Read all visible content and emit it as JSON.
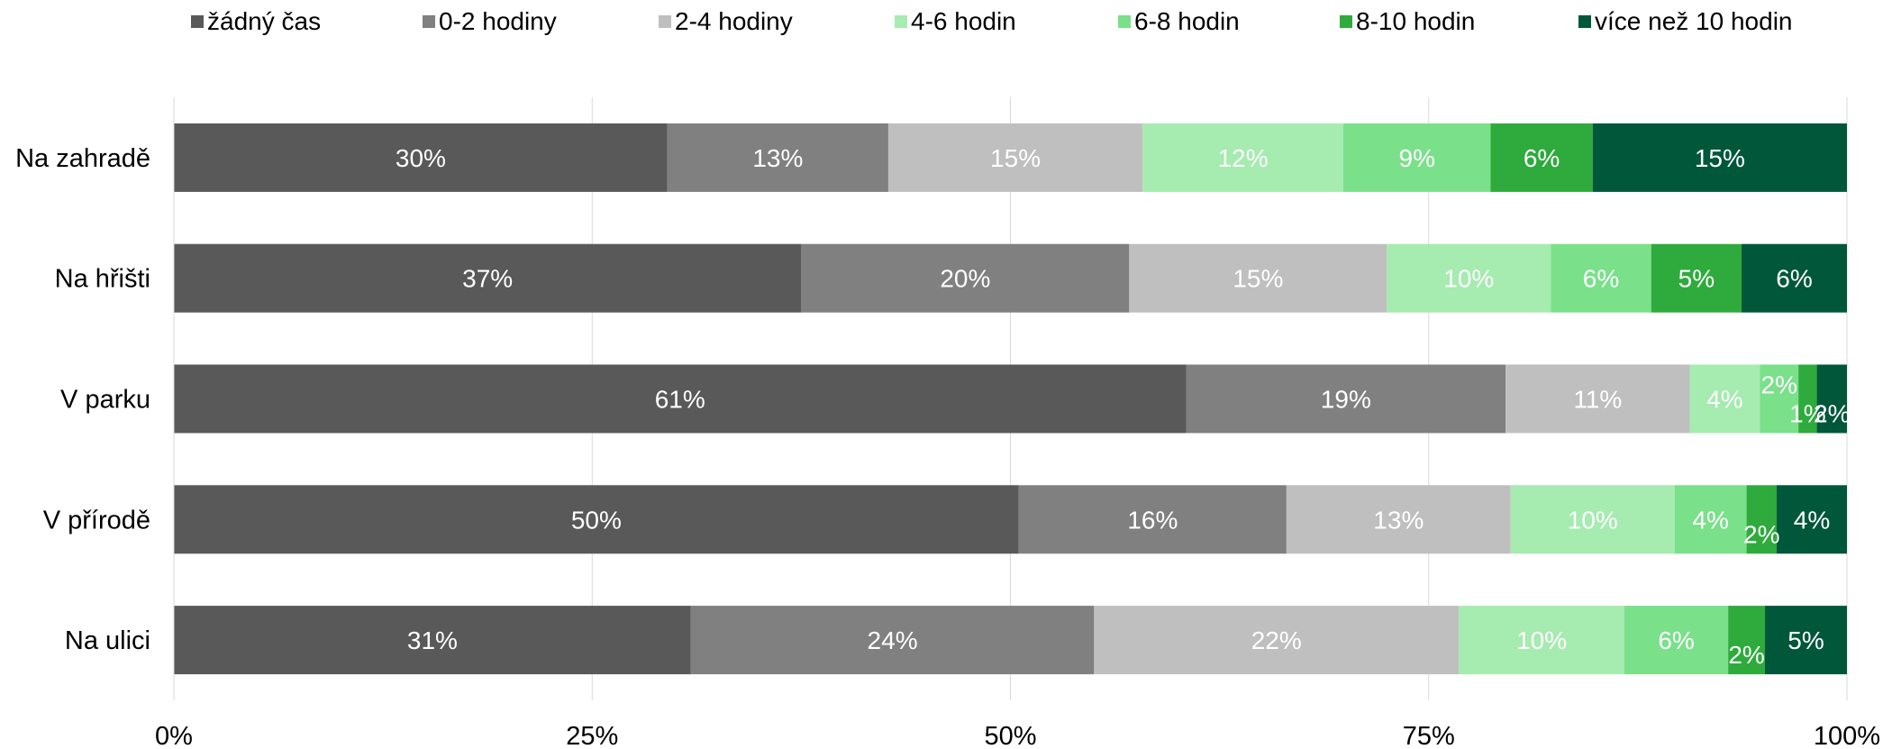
{
  "chart_data": {
    "type": "bar",
    "orientation": "horizontal",
    "stacked": "percent",
    "categories": [
      "Na zahradě",
      "Na hřišti",
      "V parku",
      "V přírodě",
      "Na ulici"
    ],
    "series": [
      {
        "name": "žádný čas",
        "color": "#595959",
        "values": [
          29.5,
          37.5,
          60.5,
          50.5,
          30.9
        ],
        "labels": [
          "30%",
          "37%",
          "61%",
          "50%",
          "31%"
        ]
      },
      {
        "name": "0-2 hodiny",
        "color": "#808080",
        "values": [
          13.2,
          19.6,
          19.1,
          16.0,
          24.1
        ],
        "labels": [
          "13%",
          "20%",
          "19%",
          "16%",
          "24%"
        ]
      },
      {
        "name": "2-4 hodiny",
        "color": "#bfbfbf",
        "values": [
          15.2,
          15.4,
          11.0,
          13.4,
          21.8
        ],
        "labels": [
          "15%",
          "15%",
          "11%",
          "13%",
          "22%"
        ]
      },
      {
        "name": "4-6 hodin",
        "color": "#a6ebb0",
        "values": [
          12.0,
          9.8,
          4.2,
          9.8,
          9.9
        ],
        "labels": [
          "12%",
          "10%",
          "4%",
          "10%",
          "10%"
        ]
      },
      {
        "name": "6-8 hodin",
        "color": "#7ae08a",
        "values": [
          8.8,
          6.0,
          2.3,
          4.3,
          6.2
        ],
        "labels": [
          "9%",
          "6%",
          "2%",
          "4%",
          "6%"
        ]
      },
      {
        "name": "8-10 hodin",
        "color": "#2eab3c",
        "values": [
          6.1,
          5.4,
          1.1,
          1.8,
          2.2
        ],
        "labels": [
          "6%",
          "5%",
          "1%",
          "2%",
          "2%"
        ]
      },
      {
        "name": "více než 10 hodin",
        "color": "#00573a",
        "values": [
          15.2,
          6.3,
          1.8,
          4.2,
          4.9
        ],
        "labels": [
          "15%",
          "6%",
          "2%",
          "4%",
          "5%"
        ]
      }
    ],
    "xlim": [
      0,
      100
    ],
    "xticks": [
      0,
      25,
      50,
      75,
      100
    ],
    "xtick_labels": [
      "0%",
      "25%",
      "50%",
      "75%",
      "100%"
    ],
    "grid": "vertical",
    "legend_position": "top",
    "title": "",
    "xlabel": "",
    "ylabel": ""
  }
}
